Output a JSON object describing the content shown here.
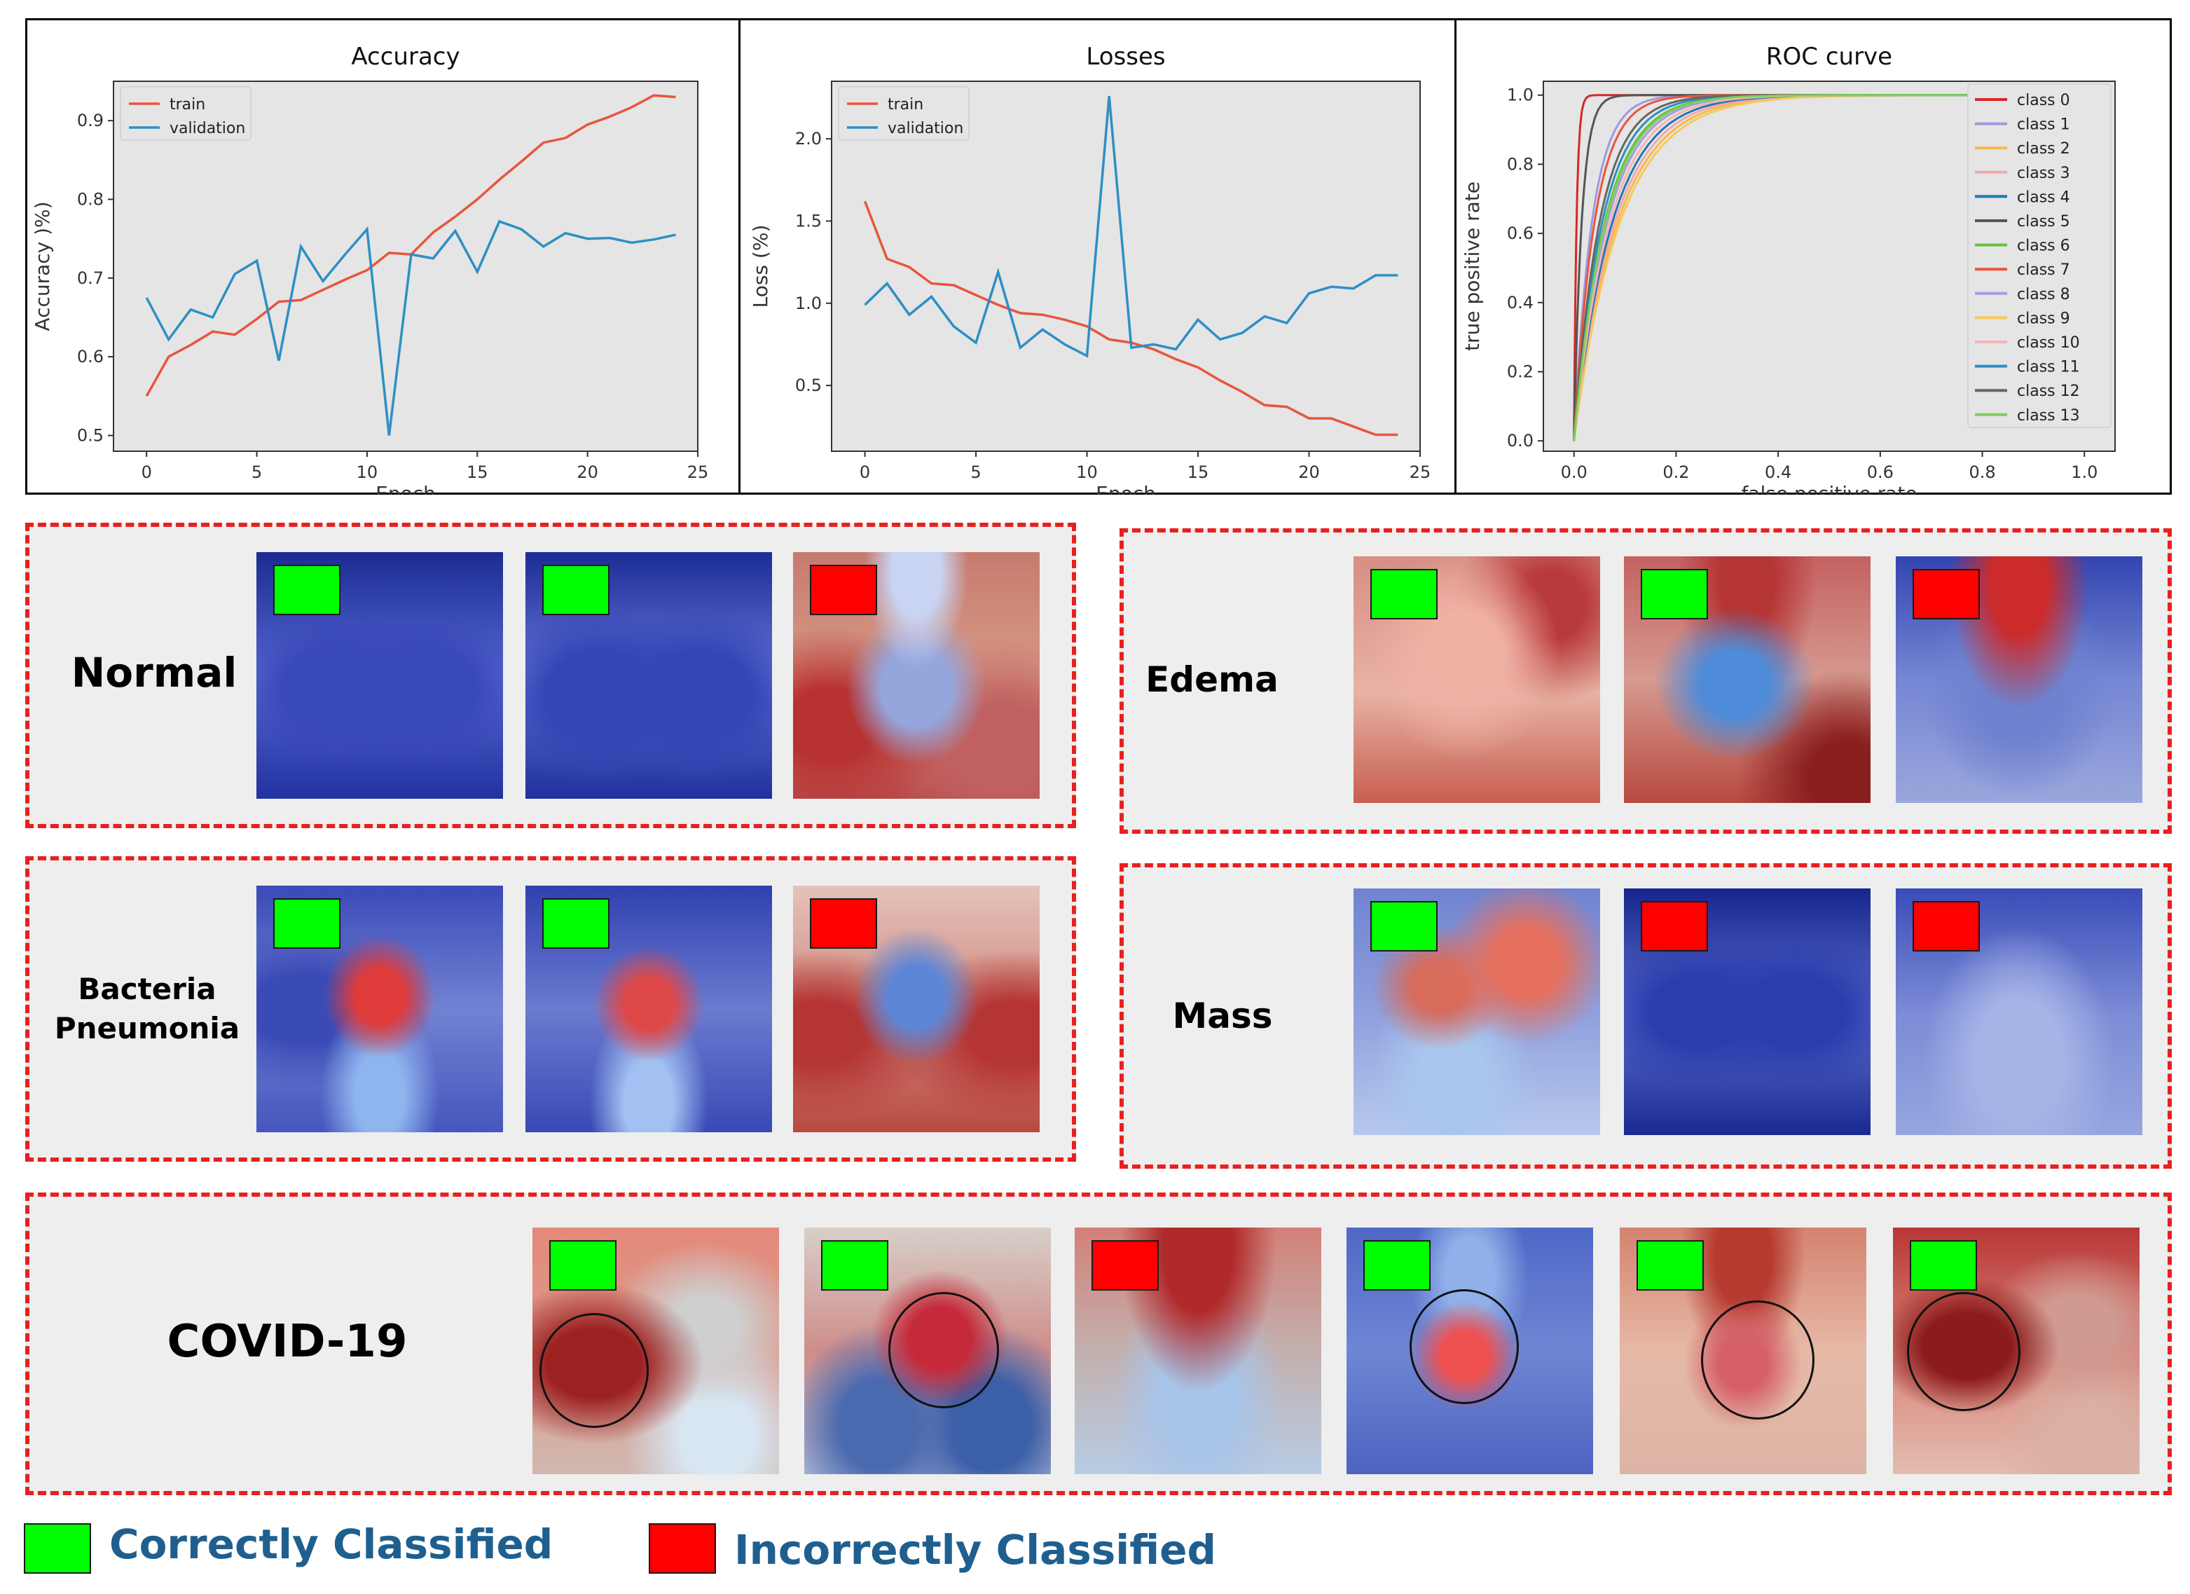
{
  "colors": {
    "train": "#e8553e",
    "validation": "#2e8fc4",
    "correct": "#00ff00",
    "incorrect": "#ff0000",
    "dashed_border": "#e8201f",
    "legend_text": "#1f5f8f"
  },
  "chart_data": [
    {
      "type": "line",
      "title": "Accuracy",
      "xlabel": "Epoch",
      "ylabel": "Accuracy )%)",
      "xlim": [
        -1.5,
        25
      ],
      "ylim": [
        0.48,
        0.95
      ],
      "xticks": [
        0,
        5,
        10,
        15,
        20,
        25
      ],
      "yticks": [
        0.5,
        0.6,
        0.7,
        0.8,
        0.9
      ],
      "x": [
        0,
        1,
        2,
        3,
        4,
        5,
        6,
        7,
        8,
        9,
        10,
        11,
        12,
        13,
        14,
        15,
        16,
        17,
        18,
        19,
        20,
        21,
        22,
        23,
        24
      ],
      "series": [
        {
          "name": "train",
          "values": [
            0.55,
            0.6,
            0.615,
            0.632,
            0.628,
            0.648,
            0.67,
            0.672,
            0.685,
            0.698,
            0.71,
            0.732,
            0.73,
            0.758,
            0.778,
            0.8,
            0.825,
            0.848,
            0.872,
            0.878,
            0.895,
            0.905,
            0.917,
            0.932,
            0.93
          ]
        },
        {
          "name": "validation",
          "values": [
            0.675,
            0.622,
            0.66,
            0.65,
            0.705,
            0.722,
            0.595,
            0.74,
            0.696,
            0.73,
            0.762,
            0.5,
            0.73,
            0.725,
            0.76,
            0.708,
            0.772,
            0.762,
            0.74,
            0.757,
            0.75,
            0.751,
            0.745,
            0.749,
            0.755
          ]
        }
      ],
      "legend": "top-left"
    },
    {
      "type": "line",
      "title": "Losses",
      "xlabel": "Epoch",
      "ylabel": "Loss (%)",
      "xlim": [
        -1.5,
        25
      ],
      "ylim": [
        0.1,
        2.35
      ],
      "xticks": [
        0,
        5,
        10,
        15,
        20,
        25
      ],
      "yticks": [
        0.5,
        1.0,
        1.5,
        2.0
      ],
      "x": [
        0,
        1,
        2,
        3,
        4,
        5,
        6,
        7,
        8,
        9,
        10,
        11,
        12,
        13,
        14,
        15,
        16,
        17,
        18,
        19,
        20,
        21,
        22,
        23,
        24
      ],
      "series": [
        {
          "name": "train",
          "values": [
            1.62,
            1.27,
            1.22,
            1.12,
            1.11,
            1.05,
            0.99,
            0.94,
            0.93,
            0.9,
            0.86,
            0.78,
            0.76,
            0.72,
            0.66,
            0.61,
            0.53,
            0.46,
            0.38,
            0.37,
            0.3,
            0.3,
            0.25,
            0.2,
            0.2
          ]
        },
        {
          "name": "validation",
          "values": [
            0.99,
            1.12,
            0.93,
            1.04,
            0.86,
            0.76,
            1.19,
            0.73,
            0.84,
            0.75,
            0.68,
            2.26,
            0.73,
            0.75,
            0.72,
            0.9,
            0.78,
            0.82,
            0.92,
            0.88,
            1.06,
            1.1,
            1.09,
            1.17,
            1.17
          ]
        }
      ],
      "legend": "top-left"
    },
    {
      "type": "line",
      "title": "ROC curve",
      "xlabel": "false positive rate",
      "ylabel": "true positive rate",
      "xlim": [
        -0.06,
        1.06
      ],
      "ylim": [
        -0.03,
        1.04
      ],
      "xticks": [
        0.0,
        0.2,
        0.4,
        0.6,
        0.8,
        1.0
      ],
      "yticks": [
        0.0,
        0.2,
        0.4,
        0.6,
        0.8,
        1.0
      ],
      "series": [
        {
          "name": "class 0",
          "color": "#d62728",
          "knee": 0.005
        },
        {
          "name": "class 1",
          "color": "#9d9ae0",
          "knee": 0.035
        },
        {
          "name": "class 2",
          "color": "#f7b84f",
          "knee": 0.085
        },
        {
          "name": "class 3",
          "color": "#f4a7a7",
          "knee": 0.08
        },
        {
          "name": "class 4",
          "color": "#1f77b4",
          "knee": 0.075
        },
        {
          "name": "class 5",
          "color": "#555555",
          "knee": 0.015
        },
        {
          "name": "class 6",
          "color": "#6abf3b",
          "knee": 0.06
        },
        {
          "name": "class 7",
          "color": "#e8553e",
          "knee": 0.04
        },
        {
          "name": "class 8",
          "color": "#a79ce0",
          "knee": 0.065
        },
        {
          "name": "class 9",
          "color": "#f7c85c",
          "knee": 0.09
        },
        {
          "name": "class 10",
          "color": "#f7b3b3",
          "knee": 0.07
        },
        {
          "name": "class 11",
          "color": "#2e8fc4",
          "knee": 0.055
        },
        {
          "name": "class 12",
          "color": "#666666",
          "knee": 0.05
        },
        {
          "name": "class 13",
          "color": "#7dd05a",
          "knee": 0.062
        }
      ],
      "legend": "right"
    }
  ],
  "sections": [
    {
      "id": "normal",
      "label": "Normal",
      "results": [
        "correct",
        "correct",
        "incorrect"
      ]
    },
    {
      "id": "edema",
      "label": "Edema",
      "results": [
        "correct",
        "correct",
        "incorrect"
      ]
    },
    {
      "id": "bacteria",
      "label": "Bacteria\nPneumonia",
      "results": [
        "correct",
        "correct",
        "incorrect"
      ]
    },
    {
      "id": "mass",
      "label": "Mass",
      "results": [
        "correct",
        "incorrect",
        "incorrect"
      ]
    },
    {
      "id": "covid",
      "label": "COVID-19",
      "results": [
        "correct",
        "correct",
        "incorrect",
        "correct",
        "correct",
        "correct"
      ]
    }
  ],
  "legend": {
    "correct_label": "Correctly Classified",
    "incorrect_label": "Incorrectly Classified"
  }
}
